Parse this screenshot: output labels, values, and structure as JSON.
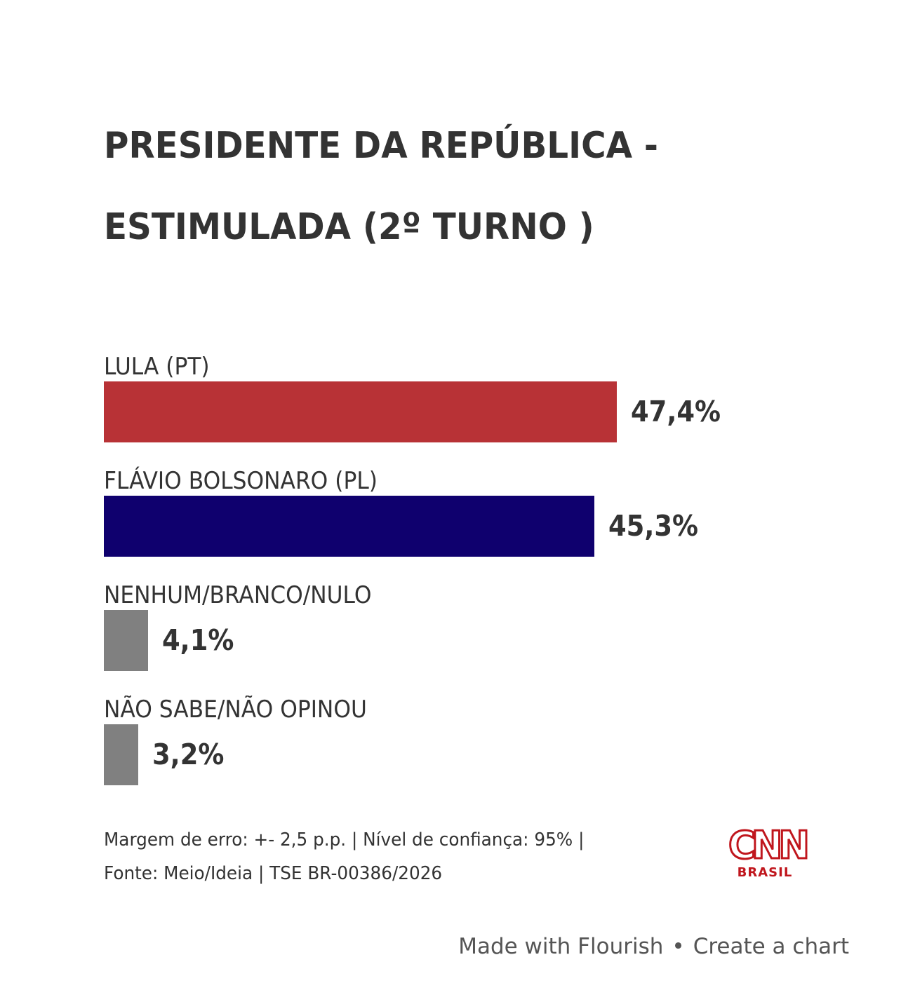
{
  "chart_data": {
    "type": "bar",
    "orientation": "horizontal",
    "title_lines": [
      "PRESIDENTE DA REPÚBLICA -",
      "ESTIMULADA (2º TURNO )"
    ],
    "categories": [
      "LULA (PT)",
      "FLÁVIO BOLSONARO (PL)",
      "NENHUM/BRANCO/NULO",
      "NÃO SABE/NÃO OPINOU"
    ],
    "values": [
      47.4,
      45.3,
      4.1,
      3.2
    ],
    "value_labels": [
      "47,4%",
      "45,3%",
      "4,1%",
      "3,2%"
    ],
    "colors": [
      "#b83236",
      "#0f006e",
      "#808080",
      "#808080"
    ],
    "xlim": [
      0,
      47.4
    ],
    "xlabel": "",
    "ylabel": "",
    "grid": false,
    "unit": "%"
  },
  "footnote": {
    "line1": "Margem de erro: +- 2,5 p.p. | Nível de confiança: 95% |",
    "line2": "Fonte: Meio/Ideia | TSE BR-00386/2026"
  },
  "logo": {
    "text": "CNN",
    "subtext": "BRASIL",
    "color": "#c0161d",
    "icon": "cnn-brasil-logo"
  },
  "flourish": {
    "made_with": "Made with Flourish",
    "separator": "•",
    "create": "Create a chart"
  }
}
